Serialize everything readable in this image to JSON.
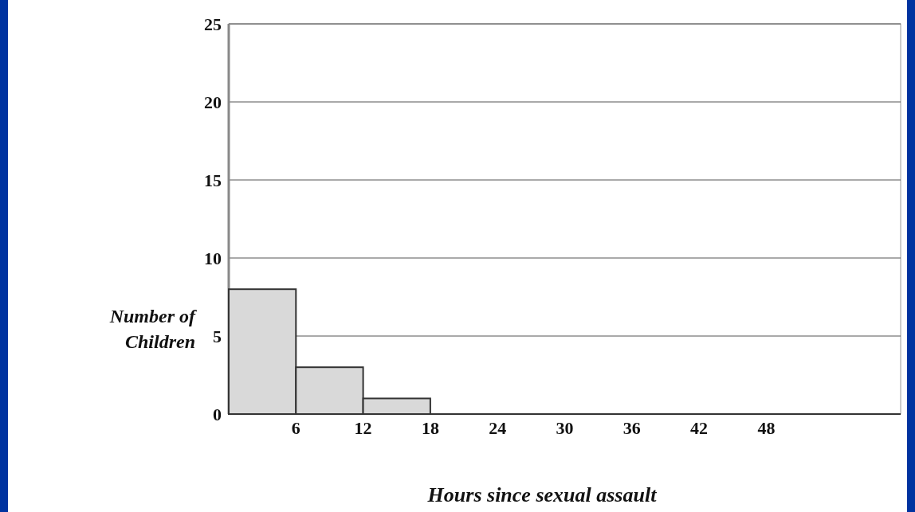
{
  "chart_data": {
    "type": "histogram",
    "xlabel": "Hours since sexual assault",
    "ylabel": "Number of Children",
    "bins": [
      0,
      6,
      12,
      18,
      24,
      30,
      36,
      42,
      48,
      54,
      60
    ],
    "values": [
      8,
      3,
      1,
      0,
      0,
      0,
      0,
      0,
      0,
      0
    ],
    "color": "#d9d9d9",
    "xlim": [
      0,
      60
    ],
    "xticks": [
      6,
      12,
      18,
      24,
      30,
      36,
      42,
      48
    ],
    "ylim": [
      0,
      25
    ],
    "yticks": [
      0,
      5,
      10,
      15,
      20,
      25
    ],
    "grid": "y"
  }
}
